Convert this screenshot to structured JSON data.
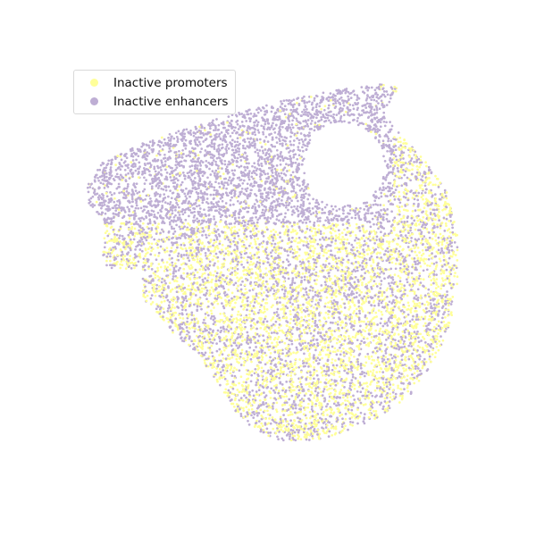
{
  "chart_data": {
    "type": "scatter",
    "title": "",
    "xlabel": "",
    "ylabel": "",
    "axes_visible": false,
    "grid": false,
    "legend_placement": "upper-left",
    "series": [
      {
        "name": "Inactive promoters",
        "color": "#ffff99",
        "distribution": "concentrated in the lower and right lobe of the cloud, sparse in the upper-left band"
      },
      {
        "name": "Inactive enhancers",
        "color": "#beaed4",
        "distribution": "dominant across the whole cloud, forming a dense upper-left band and extending throughout the lower lobe"
      }
    ]
  },
  "legend": {
    "items": [
      {
        "label": "Inactive promoters",
        "color": "#ffff99"
      },
      {
        "label": "Inactive enhancers",
        "color": "#beaed4"
      }
    ]
  }
}
